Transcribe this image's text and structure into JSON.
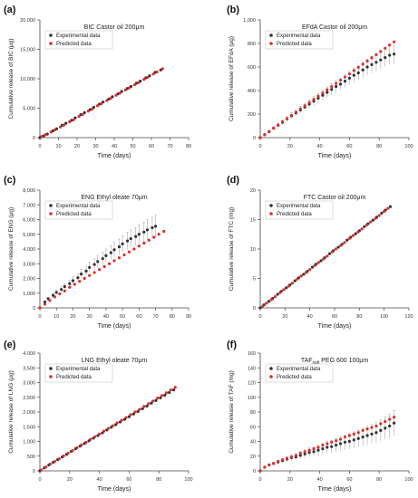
{
  "figure": {
    "legend": {
      "experimental": "Experimental data",
      "predicted": "Predicted data"
    },
    "colors": {
      "experimental": "#333333",
      "predicted": "#d9302c",
      "axis": "#444444",
      "errorbar": "#9a9a9a"
    }
  },
  "chart_data": [
    {
      "panel_label": "(a)",
      "type": "scatter",
      "title": "BIC Castor oil 200μm",
      "title_parts": [
        "BIC Castor oil 200μm"
      ],
      "xlabel": "Time (days)",
      "ylabel": "Cumulative release of BIC (μg)",
      "xlim": [
        0,
        80
      ],
      "ylim": [
        0,
        20000
      ],
      "xticks": [
        0,
        10,
        20,
        30,
        40,
        50,
        60,
        70,
        80
      ],
      "yticks": [
        0,
        5000,
        10000,
        15000,
        20000
      ],
      "yticklabels": [
        "0",
        "5,000",
        "10,000",
        "15,000",
        "20,000"
      ],
      "legend_position": "top-left",
      "error_bars": false,
      "series": [
        {
          "name": "Experimental data",
          "x": [
            0,
            2,
            4,
            7,
            9,
            12,
            14,
            17,
            19,
            22,
            24,
            27,
            29,
            32,
            34,
            37,
            39,
            42,
            44,
            47,
            49,
            52,
            54,
            57,
            59,
            62,
            65
          ],
          "y": [
            0,
            300,
            600,
            1150,
            1500,
            2100,
            2450,
            2950,
            3350,
            3900,
            4250,
            4750,
            5150,
            5700,
            6050,
            6550,
            6950,
            7450,
            7850,
            8350,
            8700,
            9250,
            9600,
            10150,
            10500,
            11100,
            11500
          ]
        },
        {
          "name": "Predicted data",
          "x": [
            1,
            3,
            6,
            8,
            11,
            13,
            16,
            18,
            21,
            23,
            26,
            28,
            31,
            33,
            36,
            38,
            41,
            43,
            46,
            48,
            51,
            53,
            56,
            58,
            61,
            63,
            66
          ],
          "y": [
            200,
            500,
            950,
            1300,
            1800,
            2150,
            2700,
            3000,
            3600,
            3950,
            4500,
            4850,
            5400,
            5750,
            6300,
            6650,
            7200,
            7550,
            8100,
            8450,
            9000,
            9350,
            9900,
            10250,
            10800,
            11150,
            11700
          ]
        }
      ]
    },
    {
      "panel_label": "(b)",
      "type": "scatter",
      "title": "EFdA Castor oil 200μm",
      "title_parts": [
        "EFdA Castor oil 200μm"
      ],
      "xlabel": "Time (days)",
      "ylabel": "Cumulative release of EFdA (μg)",
      "xlim": [
        0,
        100
      ],
      "ylim": [
        0,
        1000
      ],
      "xticks": [
        0,
        20,
        40,
        60,
        80,
        100
      ],
      "yticks": [
        0,
        200,
        400,
        600,
        800,
        1000
      ],
      "yticklabels": [
        "0",
        "200",
        "400",
        "600",
        "800",
        "1,000"
      ],
      "legend_position": "top-left",
      "error_bars": true,
      "series": [
        {
          "name": "Experimental data",
          "x": [
            0,
            3,
            6,
            9,
            12,
            15,
            18,
            21,
            24,
            27,
            30,
            33,
            36,
            39,
            42,
            45,
            48,
            51,
            54,
            57,
            60,
            63,
            66,
            69,
            72,
            75,
            78,
            81,
            84,
            87,
            90
          ],
          "y": [
            0,
            25,
            50,
            80,
            105,
            130,
            160,
            185,
            210,
            235,
            260,
            285,
            310,
            335,
            360,
            385,
            410,
            435,
            455,
            480,
            505,
            530,
            550,
            575,
            600,
            620,
            640,
            660,
            680,
            700,
            710
          ],
          "err": [
            0,
            8,
            12,
            15,
            18,
            20,
            22,
            25,
            28,
            30,
            32,
            35,
            38,
            40,
            42,
            45,
            48,
            50,
            52,
            55,
            58,
            60,
            62,
            65,
            68,
            70,
            72,
            75,
            78,
            80,
            82
          ]
        },
        {
          "name": "Predicted data",
          "x": [
            0,
            3,
            6,
            9,
            12,
            15,
            18,
            21,
            24,
            27,
            30,
            33,
            36,
            39,
            42,
            45,
            48,
            51,
            54,
            57,
            60,
            63,
            66,
            69,
            72,
            75,
            78,
            81,
            84,
            87,
            90
          ],
          "y": [
            0,
            25,
            52,
            80,
            107,
            135,
            162,
            190,
            217,
            244,
            271,
            298,
            325,
            352,
            380,
            407,
            434,
            461,
            488,
            515,
            542,
            570,
            597,
            624,
            651,
            678,
            705,
            732,
            760,
            787,
            814
          ]
        }
      ]
    },
    {
      "panel_label": "(c)",
      "type": "scatter",
      "title": "ENG Ethyl oleate 70μm",
      "title_parts": [
        "ENG Ethyl oleate 70μm"
      ],
      "xlabel": "Time (days)",
      "ylabel": "Cumulative release of ENG (μg)",
      "xlim": [
        0,
        90
      ],
      "ylim": [
        0,
        8000
      ],
      "xticks": [
        0,
        10,
        20,
        30,
        40,
        50,
        60,
        70,
        80,
        90
      ],
      "yticks": [
        0,
        1000,
        2000,
        3000,
        4000,
        5000,
        6000,
        7000,
        8000
      ],
      "yticklabels": [
        "0",
        "1,000",
        "2,000",
        "3,000",
        "4,000",
        "5,000",
        "6,000",
        "7,000",
        "8,000"
      ],
      "legend_position": "top-left",
      "error_bars": true,
      "series": [
        {
          "name": "Experimental data",
          "x": [
            0,
            3,
            5,
            8,
            10,
            13,
            15,
            18,
            20,
            23,
            25,
            28,
            30,
            33,
            35,
            38,
            40,
            43,
            45,
            48,
            50,
            53,
            55,
            58,
            60,
            63,
            65,
            68,
            70
          ],
          "y": [
            0,
            400,
            620,
            850,
            1050,
            1250,
            1450,
            1650,
            1850,
            2050,
            2300,
            2500,
            2750,
            2950,
            3150,
            3350,
            3550,
            3750,
            3950,
            4150,
            4350,
            4550,
            4700,
            4850,
            5000,
            5150,
            5300,
            5450,
            5550
          ],
          "err": [
            0,
            80,
            100,
            120,
            150,
            180,
            200,
            220,
            250,
            280,
            300,
            330,
            350,
            380,
            400,
            430,
            450,
            480,
            500,
            520,
            550,
            580,
            600,
            620,
            650,
            680,
            700,
            720,
            750
          ]
        },
        {
          "name": "Predicted data",
          "x": [
            0,
            3,
            6,
            9,
            12,
            15,
            18,
            21,
            24,
            27,
            30,
            33,
            36,
            39,
            42,
            45,
            48,
            51,
            54,
            57,
            60,
            63,
            66,
            69,
            72,
            75
          ],
          "y": [
            0,
            250,
            500,
            750,
            950,
            1150,
            1400,
            1600,
            1800,
            2000,
            2200,
            2400,
            2600,
            2800,
            3000,
            3200,
            3400,
            3600,
            3800,
            4000,
            4200,
            4400,
            4600,
            4800,
            5000,
            5200
          ]
        }
      ]
    },
    {
      "panel_label": "(d)",
      "type": "scatter",
      "title": "FTC Castor oil 200μm",
      "title_parts": [
        "FTC Castor oil 200μm"
      ],
      "xlabel": "Time (days)",
      "ylabel": "Cumulative release of FTC (mg)",
      "xlim": [
        0,
        120
      ],
      "ylim": [
        0,
        20
      ],
      "xticks": [
        0,
        20,
        40,
        60,
        80,
        100,
        120
      ],
      "yticks": [
        0,
        5,
        10,
        15,
        20
      ],
      "yticklabels": [
        "0",
        "5",
        "10",
        "15",
        "20"
      ],
      "legend_position": "top-left",
      "error_bars": false,
      "series": [
        {
          "name": "Experimental data",
          "x": [
            0,
            3,
            7,
            10,
            14,
            17,
            21,
            24,
            28,
            31,
            35,
            38,
            42,
            45,
            49,
            52,
            56,
            59,
            63,
            66,
            70,
            73,
            77,
            80,
            84,
            87,
            91,
            94,
            98,
            101,
            105
          ],
          "y": [
            0,
            0.5,
            1.1,
            1.6,
            2.3,
            2.8,
            3.4,
            3.9,
            4.6,
            5.1,
            5.7,
            6.2,
            6.9,
            7.4,
            8.0,
            8.5,
            9.2,
            9.7,
            10.3,
            10.8,
            11.5,
            12.0,
            12.6,
            13.1,
            13.8,
            14.3,
            14.9,
            15.4,
            16.1,
            16.6,
            17.2
          ]
        },
        {
          "name": "Predicted data",
          "x": [
            2,
            5,
            9,
            12,
            16,
            19,
            23,
            26,
            30,
            33,
            37,
            40,
            44,
            47,
            51,
            54,
            58,
            61,
            65,
            68,
            72,
            75,
            79,
            82,
            86,
            89,
            93,
            96,
            100,
            103
          ],
          "y": [
            0.3,
            0.8,
            1.4,
            1.9,
            2.6,
            3.1,
            3.7,
            4.2,
            4.9,
            5.4,
            6.0,
            6.5,
            7.2,
            7.7,
            8.3,
            8.8,
            9.5,
            10.0,
            10.6,
            11.1,
            11.8,
            12.3,
            12.9,
            13.4,
            14.1,
            14.6,
            15.2,
            15.7,
            16.4,
            16.9
          ]
        }
      ]
    },
    {
      "panel_label": "(e)",
      "type": "scatter",
      "title": "LNG Ethyl oleate 70μm",
      "title_parts": [
        "LNG Ethyl oleate 70μm"
      ],
      "xlabel": "Time (days)",
      "ylabel": "Cumulative release of LNG (μg)",
      "xlim": [
        0,
        100
      ],
      "ylim": [
        0,
        4000
      ],
      "xticks": [
        0,
        20,
        40,
        60,
        80,
        100
      ],
      "yticks": [
        0,
        500,
        1000,
        1500,
        2000,
        2500,
        3000,
        3500,
        4000
      ],
      "yticklabels": [
        "0",
        "500",
        "1,000",
        "1,500",
        "2,000",
        "2,500",
        "3,000",
        "3,500",
        "4,000"
      ],
      "legend_position": "top-left",
      "error_bars": false,
      "series": [
        {
          "name": "Experimental data",
          "x": [
            0,
            3,
            6,
            9,
            12,
            15,
            18,
            21,
            24,
            27,
            30,
            33,
            36,
            39,
            42,
            45,
            48,
            51,
            54,
            57,
            60,
            63,
            66,
            69,
            72,
            75,
            78,
            81,
            84,
            87,
            90
          ],
          "y": [
            0,
            100,
            200,
            290,
            380,
            470,
            560,
            660,
            750,
            840,
            930,
            1020,
            1110,
            1200,
            1290,
            1390,
            1480,
            1570,
            1660,
            1750,
            1840,
            1930,
            2020,
            2110,
            2200,
            2300,
            2390,
            2480,
            2570,
            2660,
            2750
          ]
        },
        {
          "name": "Predicted data",
          "x": [
            1,
            4,
            7,
            10,
            13,
            16,
            19,
            22,
            25,
            28,
            31,
            34,
            37,
            40,
            43,
            46,
            49,
            52,
            55,
            58,
            61,
            64,
            67,
            70,
            73,
            76,
            79,
            82,
            85,
            88,
            91
          ],
          "y": [
            30,
            130,
            230,
            320,
            410,
            510,
            600,
            690,
            790,
            880,
            970,
            1070,
            1160,
            1250,
            1350,
            1440,
            1530,
            1630,
            1720,
            1810,
            1910,
            2000,
            2090,
            2190,
            2280,
            2370,
            2470,
            2560,
            2650,
            2750,
            2840
          ]
        }
      ]
    },
    {
      "panel_label": "(f)",
      "type": "scatter",
      "title": "TAFsalt PEG 600 100μm",
      "title_parts": [
        "TAF",
        "salt",
        " PEG 600 100μm"
      ],
      "xlabel": "Time (days)",
      "ylabel": "Cumulative release of TAF (mg)",
      "xlim": [
        0,
        100
      ],
      "ylim": [
        0,
        160
      ],
      "xticks": [
        0,
        20,
        40,
        60,
        80,
        100
      ],
      "yticks": [
        0,
        20,
        40,
        60,
        80,
        100,
        120,
        140,
        160
      ],
      "yticklabels": [
        "0",
        "20",
        "40",
        "60",
        "80",
        "100",
        "120",
        "140",
        "160"
      ],
      "legend_position": "top-left",
      "error_bars": true,
      "series": [
        {
          "name": "Experimental data",
          "x": [
            0,
            3,
            6,
            9,
            12,
            15,
            18,
            21,
            24,
            27,
            30,
            33,
            36,
            39,
            42,
            45,
            48,
            51,
            54,
            57,
            60,
            63,
            66,
            69,
            72,
            75,
            78,
            81,
            84,
            87,
            90
          ],
          "y": [
            0,
            5,
            8,
            10,
            12,
            14,
            16,
            18,
            19,
            21,
            23,
            25,
            26,
            28,
            30,
            32,
            33,
            35,
            37,
            39,
            40,
            42,
            44,
            46,
            48,
            50,
            52,
            55,
            58,
            61,
            65
          ],
          "err": [
            0,
            1,
            1.5,
            2,
            2.5,
            3,
            3.5,
            4,
            4.5,
            5,
            5.5,
            6,
            6.5,
            7,
            7.5,
            8,
            8.5,
            9,
            9.5,
            10,
            10.5,
            11,
            11.5,
            12,
            12.5,
            13,
            13.5,
            14,
            15,
            16,
            17
          ]
        },
        {
          "name": "Predicted data",
          "x": [
            0,
            3,
            6,
            9,
            12,
            15,
            18,
            21,
            24,
            27,
            30,
            33,
            36,
            39,
            42,
            45,
            48,
            51,
            54,
            57,
            60,
            63,
            66,
            69,
            72,
            75,
            78,
            81,
            84,
            87,
            90
          ],
          "y": [
            0,
            5,
            8,
            10,
            13,
            15,
            17,
            19,
            21,
            24,
            26,
            28,
            30,
            32,
            35,
            37,
            39,
            41,
            43,
            46,
            48,
            50,
            52,
            55,
            57,
            59,
            61,
            64,
            67,
            70,
            73
          ]
        }
      ]
    }
  ]
}
